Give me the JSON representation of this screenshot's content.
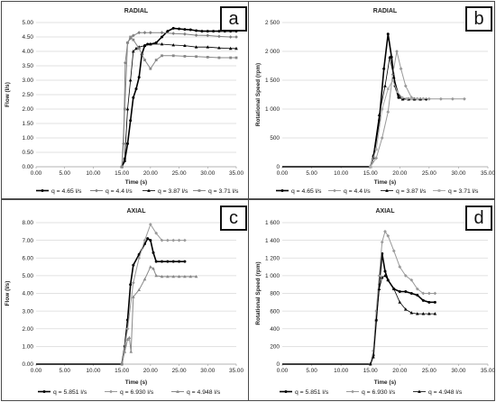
{
  "chart_data": [
    {
      "id": "a",
      "type": "line",
      "title": "RADIAL",
      "badge": "a",
      "xlabel": "Time (s)",
      "ylabel": "Flow (l/s)",
      "xlim": [
        0,
        35
      ],
      "ylim": [
        0,
        5
      ],
      "xticks": [
        "0.00",
        "5.00",
        "10.00",
        "15.00",
        "20.00",
        "25.00",
        "30.00",
        "35.00"
      ],
      "yticks": [
        "0.00",
        "0.50",
        "1.00",
        "1.50",
        "2.00",
        "2.50",
        "3.00",
        "3.50",
        "4.00",
        "4.50",
        "5.00"
      ],
      "grid": "horizontal",
      "legend_placement": "bottom",
      "series": [
        {
          "name": "q = 4.65 l/s",
          "color": "#000000",
          "width": 1.6,
          "marker": "circle",
          "points": [
            [
              15,
              0
            ],
            [
              15.5,
              0.2
            ],
            [
              16,
              0.8
            ],
            [
              16.5,
              1.6
            ],
            [
              17,
              2.4
            ],
            [
              17.5,
              2.7
            ],
            [
              18,
              3.1
            ],
            [
              18.5,
              3.9
            ],
            [
              19,
              4.2
            ],
            [
              19.5,
              4.25
            ],
            [
              20,
              4.25
            ],
            [
              21,
              4.3
            ],
            [
              22,
              4.5
            ],
            [
              23,
              4.7
            ],
            [
              24,
              4.8
            ],
            [
              25,
              4.78
            ],
            [
              26,
              4.76
            ],
            [
              27,
              4.75
            ],
            [
              28,
              4.72
            ],
            [
              29,
              4.7
            ],
            [
              30,
              4.7
            ],
            [
              31,
              4.7
            ],
            [
              32,
              4.7
            ],
            [
              33,
              4.7
            ],
            [
              34,
              4.7
            ],
            [
              35,
              4.7
            ]
          ]
        },
        {
          "name": "q = 4.4 l/s",
          "color": "#808080",
          "width": 1.0,
          "marker": "diamond",
          "points": [
            [
              15,
              0
            ],
            [
              15.3,
              0.8
            ],
            [
              15.6,
              3.6
            ],
            [
              16,
              4.3
            ],
            [
              16.5,
              4.45
            ],
            [
              17,
              4.55
            ],
            [
              18,
              4.65
            ],
            [
              19,
              4.65
            ],
            [
              20,
              4.65
            ],
            [
              22,
              4.65
            ],
            [
              24,
              4.62
            ],
            [
              26,
              4.6
            ],
            [
              28,
              4.56
            ],
            [
              30,
              4.55
            ],
            [
              32,
              4.52
            ],
            [
              34,
              4.5
            ],
            [
              35,
              4.5
            ]
          ]
        },
        {
          "name": "q = 3.87 l/s",
          "color": "#000000",
          "width": 0.8,
          "marker": "triangle",
          "points": [
            [
              15,
              0
            ],
            [
              15.5,
              0.3
            ],
            [
              16,
              2.0
            ],
            [
              16.5,
              3.0
            ],
            [
              17,
              4.0
            ],
            [
              17.5,
              4.1
            ],
            [
              18,
              4.15
            ],
            [
              19,
              4.2
            ],
            [
              20,
              4.25
            ],
            [
              22,
              4.25
            ],
            [
              24,
              4.22
            ],
            [
              26,
              4.2
            ],
            [
              28,
              4.15
            ],
            [
              30,
              4.15
            ],
            [
              32,
              4.12
            ],
            [
              34,
              4.1
            ],
            [
              35,
              4.1
            ]
          ]
        },
        {
          "name": "q = 3.71 l/s",
          "color": "#888888",
          "width": 1.0,
          "marker": "square",
          "points": [
            [
              15,
              0
            ],
            [
              15.5,
              2.0
            ],
            [
              16,
              4.3
            ],
            [
              16.5,
              4.5
            ],
            [
              17,
              4.4
            ],
            [
              18,
              4.1
            ],
            [
              19,
              3.7
            ],
            [
              20,
              3.4
            ],
            [
              21,
              3.7
            ],
            [
              22,
              3.85
            ],
            [
              24,
              3.85
            ],
            [
              26,
              3.83
            ],
            [
              28,
              3.82
            ],
            [
              30,
              3.8
            ],
            [
              32,
              3.78
            ],
            [
              34,
              3.78
            ],
            [
              35,
              3.78
            ]
          ]
        }
      ]
    },
    {
      "id": "b",
      "type": "line",
      "title": "RADIAL",
      "badge": "b",
      "xlabel": "Time (s)",
      "ylabel": "Rotational Speed (rpm)",
      "xlim": [
        0,
        35
      ],
      "ylim": [
        0,
        2500
      ],
      "xticks": [
        "0.00",
        "5.00",
        "10.00",
        "15.00",
        "20.00",
        "25.00",
        "30.00",
        "35.00"
      ],
      "yticks": [
        "0",
        "500",
        "1 000",
        "1 500",
        "2 000",
        "2 500"
      ],
      "grid": "horizontal",
      "legend_placement": "bottom",
      "series": [
        {
          "name": "q = 4.65 l/s",
          "color": "#000000",
          "width": 1.6,
          "marker": "circle",
          "points": [
            [
              0,
              0
            ],
            [
              15,
              0
            ],
            [
              15.5,
              150
            ],
            [
              16.5,
              800
            ],
            [
              17.3,
              1700
            ],
            [
              18,
              2300
            ],
            [
              18.6,
              1900
            ],
            [
              19.2,
              1400
            ],
            [
              19.8,
              1200
            ],
            [
              20.5,
              1180
            ],
            [
              21.5,
              1170
            ],
            [
              22.5,
              1170
            ],
            [
              23.5,
              1170
            ],
            [
              24.5,
              1170
            ]
          ]
        },
        {
          "name": "q = 4.4 l/s",
          "color": "#999999",
          "width": 1.0,
          "marker": "diamond",
          "points": [
            [
              15,
              0
            ],
            [
              16,
              150
            ],
            [
              17,
              500
            ],
            [
              18,
              950
            ],
            [
              18.8,
              1600
            ],
            [
              19.5,
              2000
            ],
            [
              20.2,
              1700
            ],
            [
              21,
              1400
            ],
            [
              22,
              1200
            ],
            [
              23,
              1180
            ],
            [
              24,
              1180
            ],
            [
              25,
              1175
            ],
            [
              27,
              1175
            ],
            [
              29,
              1175
            ],
            [
              31,
              1175
            ]
          ]
        },
        {
          "name": "q = 3.87 l/s",
          "color": "#000000",
          "width": 0.8,
          "marker": "triangle",
          "points": [
            [
              15,
              0
            ],
            [
              15.5,
              200
            ],
            [
              16.5,
              900
            ],
            [
              17.5,
              1400
            ],
            [
              18.3,
              1900
            ],
            [
              19,
              1550
            ],
            [
              19.8,
              1250
            ],
            [
              20.5,
              1170
            ],
            [
              21.5,
              1170
            ],
            [
              22.5,
              1170
            ],
            [
              23.5,
              1170
            ]
          ]
        },
        {
          "name": "q = 3.71 l/s",
          "color": "#aaaaaa",
          "width": 1.0,
          "marker": "square",
          "points": [
            [
              15,
              0
            ],
            [
              16,
              300
            ],
            [
              17,
              1000
            ],
            [
              18,
              1350
            ],
            [
              18.8,
              1500
            ],
            [
              19.6,
              1300
            ],
            [
              20.4,
              1200
            ],
            [
              21.2,
              1180
            ],
            [
              22,
              1175
            ],
            [
              23,
              1175
            ],
            [
              24,
              1175
            ]
          ]
        }
      ]
    },
    {
      "id": "c",
      "type": "line",
      "title": "AXIAL",
      "badge": "c",
      "xlabel": "Time (s)",
      "ylabel": "Flow (l/s)",
      "xlim": [
        0,
        35
      ],
      "ylim": [
        0,
        8
      ],
      "xticks": [
        "0.00",
        "5.00",
        "10.00",
        "15.00",
        "20.00",
        "25.00",
        "30.00",
        "35.00"
      ],
      "yticks": [
        "0.00",
        "1.00",
        "2.00",
        "3.00",
        "4.00",
        "5.00",
        "6.00",
        "7.00",
        "8.00"
      ],
      "grid": "horizontal",
      "legend_placement": "bottom",
      "series": [
        {
          "name": "q = 5.851 l/s",
          "color": "#000000",
          "width": 1.6,
          "marker": "circle",
          "points": [
            [
              0,
              0
            ],
            [
              15,
              0
            ],
            [
              15.5,
              1.0
            ],
            [
              16,
              2.5
            ],
            [
              16.5,
              4.5
            ],
            [
              17,
              5.6
            ],
            [
              18,
              6.2
            ],
            [
              19,
              6.8
            ],
            [
              19.5,
              7.1
            ],
            [
              20,
              7.0
            ],
            [
              20.5,
              6.3
            ],
            [
              21,
              5.8
            ],
            [
              22,
              5.8
            ],
            [
              23,
              5.8
            ],
            [
              24,
              5.8
            ],
            [
              25,
              5.8
            ],
            [
              26,
              5.8
            ]
          ]
        },
        {
          "name": "q = 6.930 l/s",
          "color": "#999999",
          "width": 1.0,
          "marker": "diamond",
          "points": [
            [
              15,
              0
            ],
            [
              16,
              2.0
            ],
            [
              17,
              4.6
            ],
            [
              18,
              6.0
            ],
            [
              19,
              7.0
            ],
            [
              20,
              7.9
            ],
            [
              21,
              7.4
            ],
            [
              22,
              7.0
            ],
            [
              23,
              7.0
            ],
            [
              24,
              7.0
            ],
            [
              25,
              7.0
            ],
            [
              26,
              7.0
            ]
          ]
        },
        {
          "name": "q = 4.948 l/s",
          "color": "#888888",
          "width": 1.0,
          "marker": "triangle",
          "points": [
            [
              15,
              0
            ],
            [
              15.5,
              0.7
            ],
            [
              16,
              1.4
            ],
            [
              16.3,
              1.5
            ],
            [
              16.6,
              0.7
            ],
            [
              17,
              3.8
            ],
            [
              18,
              4.2
            ],
            [
              19,
              4.8
            ],
            [
              20,
              5.5
            ],
            [
              20.5,
              5.4
            ],
            [
              21,
              5.0
            ],
            [
              22,
              4.95
            ],
            [
              23,
              4.95
            ],
            [
              24,
              4.95
            ],
            [
              25,
              4.95
            ],
            [
              26,
              4.95
            ],
            [
              27,
              4.95
            ],
            [
              28,
              4.95
            ]
          ]
        }
      ]
    },
    {
      "id": "d",
      "type": "line",
      "title": "AXIAL",
      "badge": "d",
      "xlabel": "Time (s)",
      "ylabel": "Rotational Speed (rpm)",
      "xlim": [
        0,
        35
      ],
      "ylim": [
        0,
        1600
      ],
      "xticks": [
        "0.00",
        "5.00",
        "10.00",
        "15.00",
        "20.00",
        "25.00",
        "30.00",
        "35.00"
      ],
      "yticks": [
        "0",
        "200",
        "400",
        "600",
        "800",
        "1 000",
        "1 200",
        "1 400",
        "1 600"
      ],
      "grid": "horizontal",
      "legend_placement": "bottom",
      "series": [
        {
          "name": "q = 5.851 l/s",
          "color": "#000000",
          "width": 1.6,
          "marker": "circle",
          "points": [
            [
              0,
              0
            ],
            [
              15,
              0
            ],
            [
              15.5,
              100
            ],
            [
              16,
              500
            ],
            [
              16.5,
              900
            ],
            [
              17,
              1250
            ],
            [
              17.5,
              1050
            ],
            [
              18,
              950
            ],
            [
              19,
              850
            ],
            [
              20,
              820
            ],
            [
              21,
              820
            ],
            [
              22,
              800
            ],
            [
              23,
              780
            ],
            [
              24,
              720
            ],
            [
              25,
              700
            ],
            [
              26,
              700
            ]
          ]
        },
        {
          "name": "q = 6.930 l/s",
          "color": "#999999",
          "width": 1.0,
          "marker": "diamond",
          "points": [
            [
              15,
              0
            ],
            [
              15.5,
              150
            ],
            [
              16,
              600
            ],
            [
              16.5,
              1000
            ],
            [
              17,
              1380
            ],
            [
              17.5,
              1500
            ],
            [
              18,
              1450
            ],
            [
              19,
              1280
            ],
            [
              20,
              1100
            ],
            [
              21,
              1000
            ],
            [
              22,
              950
            ],
            [
              23,
              850
            ],
            [
              24,
              800
            ],
            [
              25,
              800
            ],
            [
              26,
              800
            ]
          ]
        },
        {
          "name": "q = 4.948 l/s",
          "color": "#000000",
          "width": 0.8,
          "marker": "triangle",
          "points": [
            [
              15,
              0
            ],
            [
              15.5,
              80
            ],
            [
              16,
              500
            ],
            [
              16.5,
              850
            ],
            [
              17,
              980
            ],
            [
              17.5,
              1000
            ],
            [
              18,
              950
            ],
            [
              19,
              850
            ],
            [
              20,
              700
            ],
            [
              21,
              620
            ],
            [
              22,
              580
            ],
            [
              23,
              570
            ],
            [
              24,
              570
            ],
            [
              25,
              570
            ],
            [
              26,
              570
            ]
          ]
        }
      ]
    }
  ]
}
